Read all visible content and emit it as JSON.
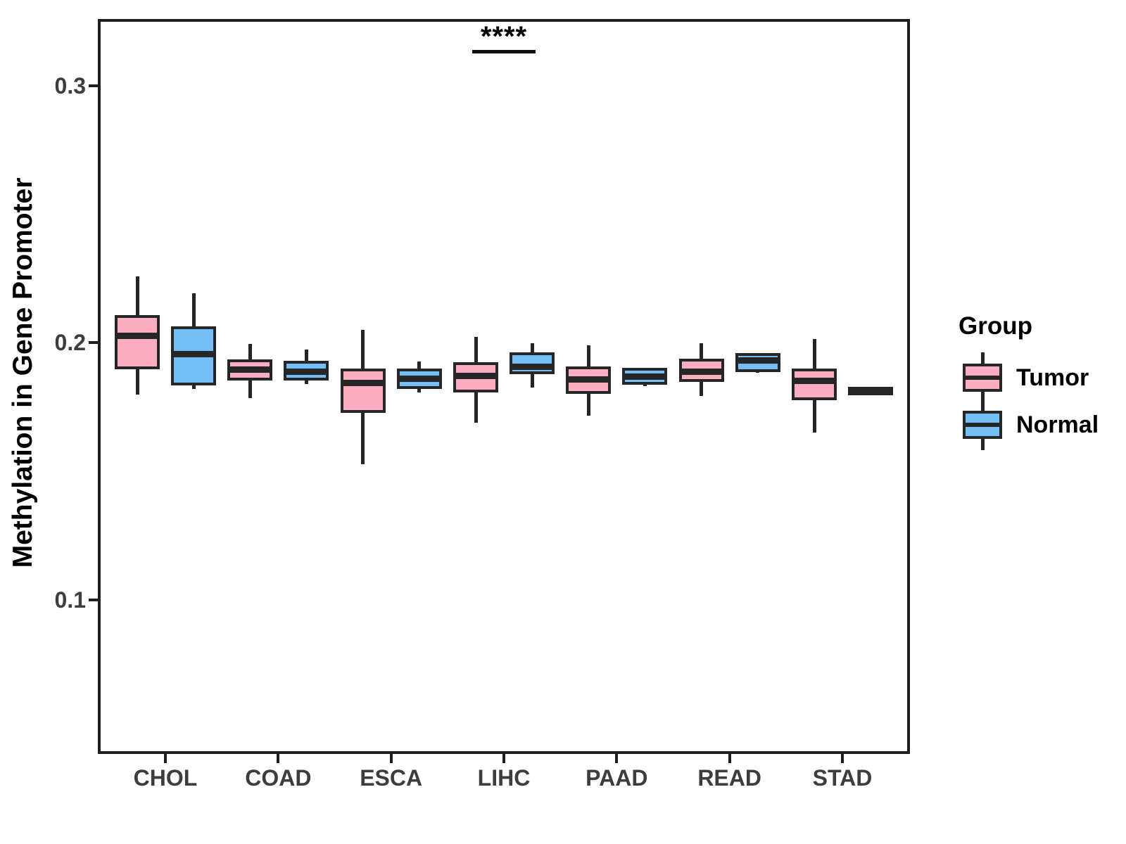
{
  "y_axis": {
    "title": "Methylation in Gene Promoter",
    "ticks": [
      {
        "value": 0.3,
        "label": "0.3"
      },
      {
        "value": 0.2,
        "label": "0.2"
      },
      {
        "value": 0.1,
        "label": "0.1"
      }
    ]
  },
  "x_axis": {
    "tick_labels": [
      "CHOL",
      "COAD",
      "ESCA",
      "LIHC",
      "PAAD",
      "READ",
      "STAD"
    ]
  },
  "legend": {
    "title": "Group",
    "items": [
      {
        "label": "Tumor",
        "color": "#FBAEC1"
      },
      {
        "label": "Normal",
        "color": "#74BFF5"
      }
    ]
  },
  "annotation": {
    "text": "****",
    "category": "LIHC"
  },
  "colors": {
    "tumor_fill": "#FBAEC1",
    "normal_fill": "#74BFF5",
    "stroke": "#262626",
    "axis_text": "#3D3D3D",
    "panel_border": "#1F1F1F"
  },
  "chart_data": {
    "type": "boxplot",
    "title": "",
    "xlabel": "",
    "ylabel": "Methylation in Gene Promoter",
    "categories": [
      "CHOL",
      "COAD",
      "ESCA",
      "LIHC",
      "PAAD",
      "READ",
      "STAD"
    ],
    "ylim": [
      0.04,
      0.326
    ],
    "yticks": [
      0.1,
      0.2,
      0.3
    ],
    "grid": false,
    "legend_position": "right",
    "significance": {
      "category": "LIHC",
      "label": "****"
    },
    "series": [
      {
        "name": "Tumor",
        "color": "#FBAEC1",
        "boxes": [
          {
            "whislo": 0.1799,
            "q1": 0.1909,
            "med": 0.2027,
            "q3": 0.2097,
            "whishi": 0.2258
          },
          {
            "whislo": 0.1785,
            "q1": 0.1865,
            "med": 0.1896,
            "q3": 0.1924,
            "whishi": 0.1996
          },
          {
            "whislo": 0.1528,
            "q1": 0.1737,
            "med": 0.1845,
            "q3": 0.1889,
            "whishi": 0.2049
          },
          {
            "whislo": 0.169,
            "q1": 0.1817,
            "med": 0.1872,
            "q3": 0.1913,
            "whishi": 0.2024
          },
          {
            "whislo": 0.1716,
            "q1": 0.1813,
            "med": 0.1858,
            "q3": 0.1898,
            "whishi": 0.1989
          },
          {
            "whislo": 0.1792,
            "q1": 0.186,
            "med": 0.1888,
            "q3": 0.1927,
            "whishi": 0.1998
          },
          {
            "whislo": 0.1651,
            "q1": 0.1788,
            "med": 0.1851,
            "q3": 0.189,
            "whishi": 0.2015
          }
        ]
      },
      {
        "name": "Normal",
        "color": "#74BFF5",
        "boxes": [
          {
            "whislo": 0.182,
            "q1": 0.1845,
            "med": 0.1957,
            "q3": 0.2052,
            "whishi": 0.2193
          },
          {
            "whislo": 0.184,
            "q1": 0.1863,
            "med": 0.1888,
            "q3": 0.192,
            "whishi": 0.1975
          },
          {
            "whislo": 0.1808,
            "q1": 0.1832,
            "med": 0.1861,
            "q3": 0.1889,
            "whishi": 0.1926
          },
          {
            "whislo": 0.1826,
            "q1": 0.1888,
            "med": 0.1906,
            "q3": 0.1953,
            "whishi": 0.1999
          },
          {
            "whislo": 0.1831,
            "q1": 0.1849,
            "med": 0.1868,
            "q3": 0.1892,
            "whishi": 0.1901
          },
          {
            "whislo": 0.1884,
            "q1": 0.1896,
            "med": 0.1932,
            "q3": 0.195,
            "whishi": 0.1958
          },
          {
            "whislo": 0.1808,
            "q1": 0.1808,
            "med": 0.1813,
            "q3": 0.1818,
            "whishi": 0.1818
          }
        ]
      }
    ]
  }
}
